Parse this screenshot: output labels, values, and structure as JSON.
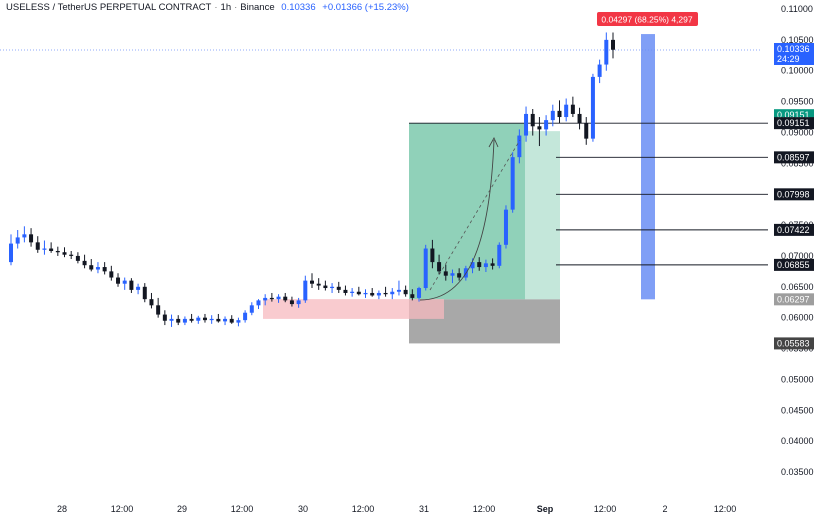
{
  "header": {
    "symbol": "USELESS / TetherUS PERPETUAL CONTRACT",
    "interval": "1h",
    "exchange": "Binance",
    "price": "0.10336",
    "change": "+0.01366 (+15.23%)"
  },
  "measure_label": "0.04297 (68.25%) 4,297",
  "current_price": {
    "value": "0.10336",
    "countdown": "24:29"
  },
  "colors": {
    "up": "#2962ff",
    "down": "#131722",
    "target_zone": "#7dc9ad",
    "stop_zone": "#9e9e9e",
    "demand_zone": "#f7b9bf",
    "measure": "#6a8ef5",
    "green_tag": "#089981",
    "red_tag": "#f23645"
  },
  "chart_data": {
    "type": "candlestick",
    "title": "USELESS / TetherUS PERPETUAL CONTRACT",
    "ylim": [
      0.031,
      0.113
    ],
    "y_ticks": [
      "0.11000",
      "0.10500",
      "0.10000",
      "0.09500",
      "0.09000",
      "0.08500",
      "0.08000",
      "0.07500",
      "0.07000",
      "0.06500",
      "0.06000",
      "0.05500",
      "0.05000",
      "0.04500",
      "0.04000",
      "0.03500"
    ],
    "x_ticks": [
      "28",
      "12:00",
      "29",
      "12:00",
      "30",
      "12:00",
      "31",
      "12:00",
      "Sep",
      "12:00",
      "2",
      "12:00"
    ],
    "candles": [
      [
        0.069,
        0.0735,
        0.0685,
        0.072
      ],
      [
        0.072,
        0.0742,
        0.0712,
        0.073
      ],
      [
        0.073,
        0.0748,
        0.0722,
        0.0735
      ],
      [
        0.0735,
        0.0745,
        0.0715,
        0.0722
      ],
      [
        0.0722,
        0.0732,
        0.0705,
        0.071
      ],
      [
        0.071,
        0.0725,
        0.0702,
        0.0712
      ],
      [
        0.0712,
        0.0722,
        0.0705,
        0.0708
      ],
      [
        0.0708,
        0.0715,
        0.07,
        0.0706
      ],
      [
        0.0706,
        0.0714,
        0.0698,
        0.0702
      ],
      [
        0.0702,
        0.0708,
        0.0695,
        0.07
      ],
      [
        0.07,
        0.0706,
        0.0688,
        0.0692
      ],
      [
        0.0692,
        0.0702,
        0.068,
        0.0685
      ],
      [
        0.0685,
        0.0695,
        0.0675,
        0.0678
      ],
      [
        0.0678,
        0.069,
        0.0672,
        0.0682
      ],
      [
        0.0682,
        0.069,
        0.067,
        0.0675
      ],
      [
        0.0675,
        0.0684,
        0.066,
        0.0665
      ],
      [
        0.0665,
        0.0672,
        0.065,
        0.0655
      ],
      [
        0.0655,
        0.0665,
        0.0645,
        0.066
      ],
      [
        0.066,
        0.0664,
        0.064,
        0.0645
      ],
      [
        0.0645,
        0.0655,
        0.0638,
        0.065
      ],
      [
        0.065,
        0.0656,
        0.0625,
        0.063
      ],
      [
        0.063,
        0.064,
        0.0615,
        0.062
      ],
      [
        0.062,
        0.0632,
        0.06,
        0.0605
      ],
      [
        0.0605,
        0.0612,
        0.0588,
        0.0595
      ],
      [
        0.0595,
        0.0605,
        0.0585,
        0.0598
      ],
      [
        0.0598,
        0.0604,
        0.0588,
        0.0592
      ],
      [
        0.0592,
        0.0602,
        0.0588,
        0.0598
      ],
      [
        0.0598,
        0.0606,
        0.0592,
        0.0595
      ],
      [
        0.0595,
        0.0603,
        0.059,
        0.06
      ],
      [
        0.06,
        0.0606,
        0.0592,
        0.0596
      ],
      [
        0.0596,
        0.0604,
        0.059,
        0.0598
      ],
      [
        0.0598,
        0.0606,
        0.0592,
        0.0594
      ],
      [
        0.0594,
        0.0602,
        0.0588,
        0.0598
      ],
      [
        0.0598,
        0.0604,
        0.059,
        0.0592
      ],
      [
        0.0592,
        0.06,
        0.0586,
        0.0596
      ],
      [
        0.0596,
        0.0612,
        0.0592,
        0.0608
      ],
      [
        0.0608,
        0.0625,
        0.0604,
        0.062
      ],
      [
        0.062,
        0.063,
        0.0614,
        0.0628
      ],
      [
        0.0628,
        0.0638,
        0.062,
        0.0632
      ],
      [
        0.0632,
        0.064,
        0.0626,
        0.063
      ],
      [
        0.063,
        0.0638,
        0.0624,
        0.0634
      ],
      [
        0.0634,
        0.064,
        0.0625,
        0.0628
      ],
      [
        0.0628,
        0.0634,
        0.0618,
        0.0622
      ],
      [
        0.0622,
        0.0632,
        0.0616,
        0.0628
      ],
      [
        0.0628,
        0.0668,
        0.0624,
        0.066
      ],
      [
        0.066,
        0.0672,
        0.0648,
        0.0655
      ],
      [
        0.0655,
        0.0664,
        0.0645,
        0.0652
      ],
      [
        0.0652,
        0.066,
        0.0644,
        0.0648
      ],
      [
        0.0648,
        0.0656,
        0.064,
        0.065
      ],
      [
        0.065,
        0.0658,
        0.064,
        0.0645
      ],
      [
        0.0645,
        0.0652,
        0.0636,
        0.064
      ],
      [
        0.064,
        0.0648,
        0.0634,
        0.0642
      ],
      [
        0.0642,
        0.065,
        0.0636,
        0.0638
      ],
      [
        0.0638,
        0.0646,
        0.0632,
        0.064
      ],
      [
        0.064,
        0.0648,
        0.0634,
        0.0636
      ],
      [
        0.0636,
        0.0644,
        0.063,
        0.064
      ],
      [
        0.064,
        0.065,
        0.0634,
        0.0638
      ],
      [
        0.0638,
        0.0648,
        0.063,
        0.0642
      ],
      [
        0.0642,
        0.066,
        0.0636,
        0.0645
      ],
      [
        0.0645,
        0.0652,
        0.0634,
        0.0638
      ],
      [
        0.0638,
        0.0646,
        0.0628,
        0.0632
      ],
      [
        0.0632,
        0.065,
        0.0626,
        0.0648
      ],
      [
        0.0648,
        0.0718,
        0.0644,
        0.0712
      ],
      [
        0.0712,
        0.0726,
        0.068,
        0.069
      ],
      [
        0.069,
        0.0702,
        0.067,
        0.0675
      ],
      [
        0.0675,
        0.0686,
        0.066,
        0.0668
      ],
      [
        0.0668,
        0.0678,
        0.0656,
        0.0672
      ],
      [
        0.0672,
        0.068,
        0.066,
        0.0665
      ],
      [
        0.0665,
        0.0684,
        0.066,
        0.068
      ],
      [
        0.068,
        0.0696,
        0.0672,
        0.069
      ],
      [
        0.069,
        0.0698,
        0.0676,
        0.0682
      ],
      [
        0.0682,
        0.0694,
        0.0674,
        0.0688
      ],
      [
        0.0688,
        0.0696,
        0.0678,
        0.0684
      ],
      [
        0.0684,
        0.0722,
        0.068,
        0.0718
      ],
      [
        0.0718,
        0.0782,
        0.0712,
        0.0775
      ],
      [
        0.0775,
        0.0868,
        0.077,
        0.086
      ],
      [
        0.086,
        0.0905,
        0.085,
        0.0895
      ],
      [
        0.0895,
        0.0942,
        0.0885,
        0.093
      ],
      [
        0.093,
        0.0938,
        0.0895,
        0.091
      ],
      [
        0.091,
        0.0925,
        0.0878,
        0.0905
      ],
      [
        0.0905,
        0.0928,
        0.0895,
        0.092
      ],
      [
        0.092,
        0.0945,
        0.091,
        0.0935
      ],
      [
        0.0935,
        0.0952,
        0.0915,
        0.0925
      ],
      [
        0.0925,
        0.0955,
        0.0918,
        0.0945
      ],
      [
        0.0945,
        0.0958,
        0.0925,
        0.093
      ],
      [
        0.093,
        0.094,
        0.0905,
        0.0915
      ],
      [
        0.0915,
        0.0925,
        0.088,
        0.089
      ],
      [
        0.089,
        0.0995,
        0.0885,
        0.099
      ],
      [
        0.099,
        0.1018,
        0.098,
        0.101
      ],
      [
        0.101,
        0.1062,
        0.1,
        0.105
      ],
      [
        0.105,
        0.1062,
        0.102,
        0.1034
      ]
    ],
    "annotations": {
      "horizontal_lines": [
        "0.09151",
        "0.08597",
        "0.07998",
        "0.07422",
        "0.06855"
      ],
      "demand_zone": [
        0.0598,
        0.063
      ],
      "target_zone": [
        0.06297,
        0.09151
      ],
      "stop_zone": [
        0.05583,
        0.06297
      ],
      "stop_label": "0.05583",
      "entry_label": "0.06297",
      "target_label": "0.09151",
      "measure_range": [
        0.06297,
        0.10594
      ]
    }
  }
}
